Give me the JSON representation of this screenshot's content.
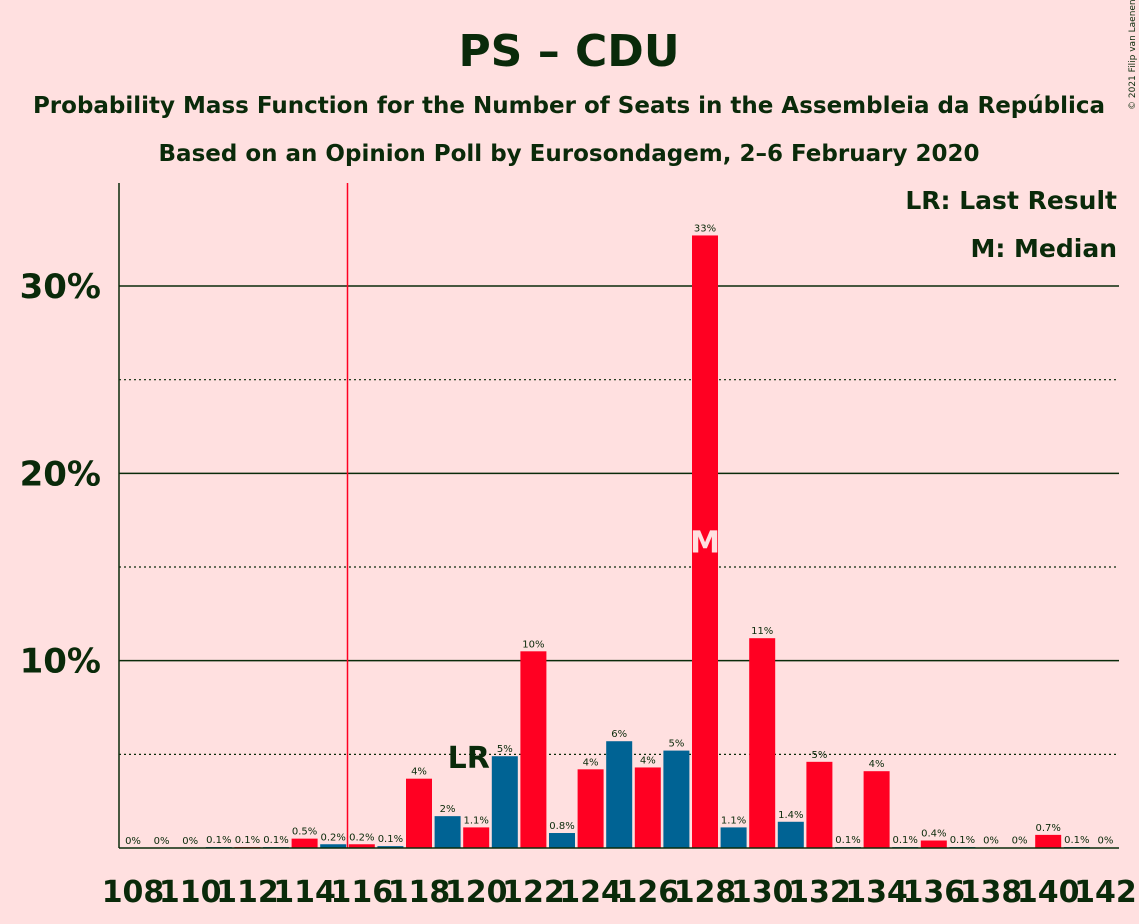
{
  "chart_data": {
    "type": "bar",
    "title": "PS – CDU",
    "subtitle_1": "Probability Mass Function for the Number of Seats in the Assembleia da República",
    "subtitle_2": "Based on an Opinion Poll by Eurosondagem, 2–6 February 2020",
    "copyright": "© 2021 Filip van Laenen",
    "legend": {
      "position": "top-right",
      "last_result": "LR: Last Result",
      "median": "M: Median"
    },
    "ylim": [
      0,
      35.5
    ],
    "y_ticks": [
      {
        "value": 10,
        "label": "10%"
      },
      {
        "value": 20,
        "label": "20%"
      },
      {
        "value": 30,
        "label": "30%"
      }
    ],
    "y_dotted_gridlines": [
      5,
      15,
      25
    ],
    "x_tick_labels": [
      "108",
      "110",
      "112",
      "114",
      "116",
      "118",
      "120",
      "122",
      "124",
      "126",
      "128",
      "130",
      "132",
      "134",
      "136",
      "138",
      "140",
      "142"
    ],
    "x": [
      108,
      109,
      110,
      111,
      112,
      113,
      114,
      115,
      116,
      117,
      118,
      119,
      120,
      121,
      122,
      123,
      124,
      125,
      126,
      127,
      128,
      129,
      130,
      131,
      132,
      133,
      134,
      135,
      136,
      137,
      138,
      139,
      140,
      141,
      142
    ],
    "values": [
      0,
      0,
      0,
      0.05,
      0.05,
      0.05,
      0.5,
      0.2,
      0.2,
      0.1,
      3.7,
      1.7,
      1.1,
      4.9,
      10.5,
      0.8,
      4.2,
      5.7,
      4.3,
      5.2,
      32.7,
      1.1,
      11.2,
      1.4,
      4.6,
      0.05,
      4.1,
      0.05,
      0.4,
      0.05,
      0.02,
      0.02,
      0.7,
      0.05,
      0.02
    ],
    "value_labels": [
      "0%",
      "0%",
      "0%",
      "0.1%",
      "0.1%",
      "0.1%",
      "0.5%",
      "0.2%",
      "0.2%",
      "0.1%",
      "4%",
      "2%",
      "1.1%",
      "5%",
      "10%",
      "0.8%",
      "4%",
      "6%",
      "4%",
      "5%",
      "33%",
      "1.1%",
      "11%",
      "1.4%",
      "5%",
      "0.1%",
      "4%",
      "0.1%",
      "0.4%",
      "0.1%",
      "0%",
      "0%",
      "0.7%",
      "0.1%",
      "0%"
    ],
    "colors": {
      "even": "#FF0022",
      "odd": "#006394",
      "majority_line": "#FF0022",
      "text": "#0a2a0a"
    },
    "majority_line_x": 115.5,
    "last_result_x": 121,
    "last_result_label": "LR",
    "median_x": 128,
    "median_label": "M"
  }
}
